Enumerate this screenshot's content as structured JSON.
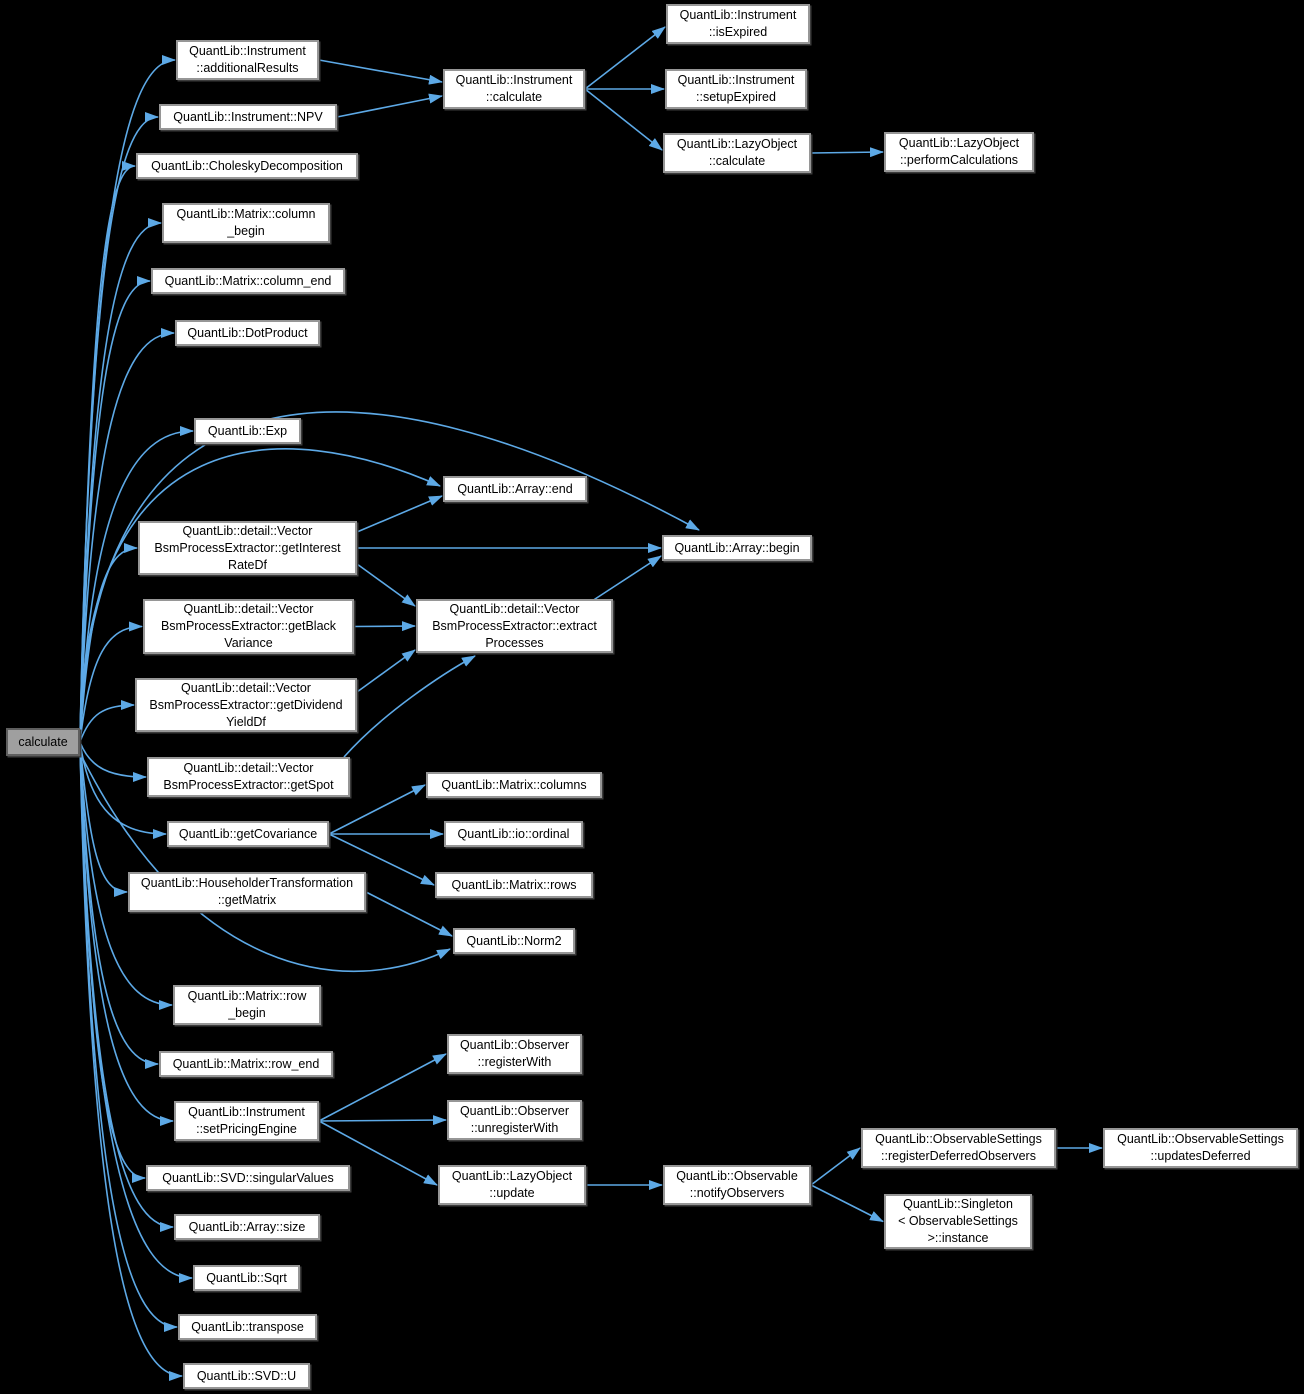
{
  "graph": {
    "background": "#000000",
    "edge_color": "#5da9e6",
    "node_bg": "#ffffff",
    "node_border": "#969696",
    "focus_bg": "#9f9f9f",
    "nodes": [
      {
        "id": "calculate",
        "label": "calculate"
      },
      {
        "id": "add_results",
        "label": "QuantLib::Instrument\n::additionalResults"
      },
      {
        "id": "npv",
        "label": "QuantLib::Instrument::NPV"
      },
      {
        "id": "cholesky",
        "label": "QuantLib::CholeskyDecomposition"
      },
      {
        "id": "col_begin",
        "label": "QuantLib::Matrix::column\n_begin"
      },
      {
        "id": "col_end",
        "label": "QuantLib::Matrix::column_end"
      },
      {
        "id": "dot_product",
        "label": "QuantLib::DotProduct"
      },
      {
        "id": "exp",
        "label": "QuantLib::Exp"
      },
      {
        "id": "get_interest",
        "label": "QuantLib::detail::Vector\nBsmProcessExtractor::getInterest\nRateDf"
      },
      {
        "id": "get_black",
        "label": "QuantLib::detail::Vector\nBsmProcessExtractor::getBlack\nVariance"
      },
      {
        "id": "get_dividend",
        "label": "QuantLib::detail::Vector\nBsmProcessExtractor::getDividend\nYieldDf"
      },
      {
        "id": "get_spot",
        "label": "QuantLib::detail::Vector\nBsmProcessExtractor::getSpot"
      },
      {
        "id": "get_cov",
        "label": "QuantLib::getCovariance"
      },
      {
        "id": "householder",
        "label": "QuantLib::HouseholderTransformation\n::getMatrix"
      },
      {
        "id": "row_begin",
        "label": "QuantLib::Matrix::row\n_begin"
      },
      {
        "id": "row_end",
        "label": "QuantLib::Matrix::row_end"
      },
      {
        "id": "set_engine",
        "label": "QuantLib::Instrument\n::setPricingEngine"
      },
      {
        "id": "singular",
        "label": "QuantLib::SVD::singularValues"
      },
      {
        "id": "arr_size",
        "label": "QuantLib::Array::size"
      },
      {
        "id": "sqrt",
        "label": "QuantLib::Sqrt"
      },
      {
        "id": "transpose",
        "label": "QuantLib::transpose"
      },
      {
        "id": "svd_u",
        "label": "QuantLib::SVD::U"
      },
      {
        "id": "instr_calc",
        "label": "QuantLib::Instrument\n::calculate"
      },
      {
        "id": "arr_end",
        "label": "QuantLib::Array::end"
      },
      {
        "id": "extract",
        "label": "QuantLib::detail::Vector\nBsmProcessExtractor::extract\nProcesses"
      },
      {
        "id": "m_columns",
        "label": "QuantLib::Matrix::columns"
      },
      {
        "id": "io_ordinal",
        "label": "QuantLib::io::ordinal"
      },
      {
        "id": "m_rows",
        "label": "QuantLib::Matrix::rows"
      },
      {
        "id": "norm2",
        "label": "QuantLib::Norm2"
      },
      {
        "id": "reg_with",
        "label": "QuantLib::Observer\n::registerWith"
      },
      {
        "id": "unreg_with",
        "label": "QuantLib::Observer\n::unregisterWith"
      },
      {
        "id": "lazy_update",
        "label": "QuantLib::LazyObject\n::update"
      },
      {
        "id": "is_expired",
        "label": "QuantLib::Instrument\n::isExpired"
      },
      {
        "id": "setup_expired",
        "label": "QuantLib::Instrument\n::setupExpired"
      },
      {
        "id": "lazy_calc",
        "label": "QuantLib::LazyObject\n::calculate"
      },
      {
        "id": "arr_begin",
        "label": "QuantLib::Array::begin"
      },
      {
        "id": "notify",
        "label": "QuantLib::Observable\n::notifyObservers"
      },
      {
        "id": "perform",
        "label": "QuantLib::LazyObject\n::performCalculations"
      },
      {
        "id": "reg_deferred",
        "label": "QuantLib::ObservableSettings\n::registerDeferredObservers"
      },
      {
        "id": "singleton",
        "label": "QuantLib::Singleton\n< ObservableSettings\n>::instance"
      },
      {
        "id": "upd_deferred",
        "label": "QuantLib::ObservableSettings\n::updatesDeferred"
      }
    ],
    "edges": [
      {
        "from": "calculate",
        "to": "add_results"
      },
      {
        "from": "calculate",
        "to": "npv"
      },
      {
        "from": "calculate",
        "to": "cholesky"
      },
      {
        "from": "calculate",
        "to": "col_begin"
      },
      {
        "from": "calculate",
        "to": "col_end"
      },
      {
        "from": "calculate",
        "to": "dot_product"
      },
      {
        "from": "calculate",
        "to": "exp"
      },
      {
        "from": "calculate",
        "to": "arr_end"
      },
      {
        "from": "calculate",
        "to": "arr_begin"
      },
      {
        "from": "calculate",
        "to": "get_interest"
      },
      {
        "from": "calculate",
        "to": "get_black"
      },
      {
        "from": "calculate",
        "to": "get_dividend"
      },
      {
        "from": "calculate",
        "to": "get_spot"
      },
      {
        "from": "calculate",
        "to": "get_cov"
      },
      {
        "from": "calculate",
        "to": "householder"
      },
      {
        "from": "calculate",
        "to": "norm2"
      },
      {
        "from": "calculate",
        "to": "row_begin"
      },
      {
        "from": "calculate",
        "to": "row_end"
      },
      {
        "from": "calculate",
        "to": "set_engine"
      },
      {
        "from": "calculate",
        "to": "singular"
      },
      {
        "from": "calculate",
        "to": "arr_size"
      },
      {
        "from": "calculate",
        "to": "sqrt"
      },
      {
        "from": "calculate",
        "to": "transpose"
      },
      {
        "from": "calculate",
        "to": "svd_u"
      },
      {
        "from": "add_results",
        "to": "instr_calc"
      },
      {
        "from": "npv",
        "to": "instr_calc"
      },
      {
        "from": "instr_calc",
        "to": "is_expired"
      },
      {
        "from": "instr_calc",
        "to": "setup_expired"
      },
      {
        "from": "instr_calc",
        "to": "lazy_calc"
      },
      {
        "from": "lazy_calc",
        "to": "perform"
      },
      {
        "from": "get_interest",
        "to": "arr_end"
      },
      {
        "from": "get_interest",
        "to": "arr_begin"
      },
      {
        "from": "get_interest",
        "to": "extract"
      },
      {
        "from": "get_black",
        "to": "extract"
      },
      {
        "from": "get_dividend",
        "to": "extract"
      },
      {
        "from": "get_spot",
        "to": "extract"
      },
      {
        "from": "extract",
        "to": "arr_begin"
      },
      {
        "from": "get_cov",
        "to": "m_columns"
      },
      {
        "from": "get_cov",
        "to": "io_ordinal"
      },
      {
        "from": "get_cov",
        "to": "m_rows"
      },
      {
        "from": "householder",
        "to": "norm2"
      },
      {
        "from": "set_engine",
        "to": "reg_with"
      },
      {
        "from": "set_engine",
        "to": "unreg_with"
      },
      {
        "from": "set_engine",
        "to": "lazy_update"
      },
      {
        "from": "lazy_update",
        "to": "notify"
      },
      {
        "from": "notify",
        "to": "reg_deferred"
      },
      {
        "from": "notify",
        "to": "singleton"
      },
      {
        "from": "reg_deferred",
        "to": "upd_deferred"
      }
    ]
  }
}
